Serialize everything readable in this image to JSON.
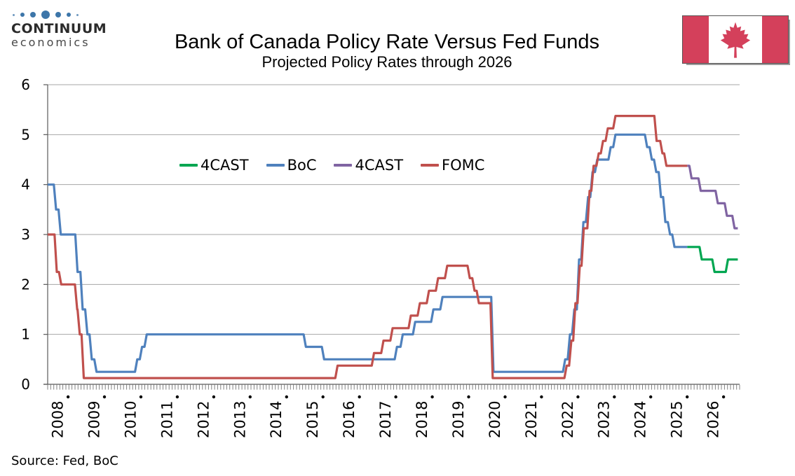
{
  "logo": {
    "name": "CONTINUUM",
    "tagline": "economics"
  },
  "header": {
    "title": "Bank of Canada Policy Rate Versus Fed Funds",
    "subtitle": "Projected Policy Rates through 2026"
  },
  "footer": {
    "source": "Source: Fed, BoC"
  },
  "flag": {
    "country": "Canada"
  },
  "chart_data": {
    "type": "line",
    "title": "Bank of Canada Policy Rate Versus Fed Funds",
    "subtitle": "Projected Policy Rates through 2026",
    "xlabel": "",
    "ylabel": "",
    "xlim": [
      2008,
      2027
    ],
    "ylim": [
      0,
      6
    ],
    "yticks": [
      0,
      1,
      2,
      3,
      4,
      5,
      6
    ],
    "xticks": [
      2008,
      2009,
      2010,
      2011,
      2012,
      2013,
      2014,
      2015,
      2016,
      2017,
      2018,
      2019,
      2020,
      2021,
      2022,
      2023,
      2024,
      2025,
      2026
    ],
    "grid": "horizontal",
    "legend_position": "inside upper-left",
    "colors": {
      "gridline": "#a6a6a6",
      "axis": "#595959",
      "tick": "#808080"
    },
    "series": [
      {
        "name": "4CAST",
        "role": "BoC rate projection",
        "color": "#00a651",
        "end": 2026.95,
        "points": [
          [
            2025.56,
            2.75
          ],
          [
            2025.93,
            2.5
          ],
          [
            2026.28,
            2.25
          ],
          [
            2026.65,
            2.5
          ]
        ]
      },
      {
        "name": "BoC",
        "role": "Bank of Canada policy rate (actual)",
        "color": "#4f81bd",
        "end": 2025.56,
        "points": [
          [
            2008.0,
            4.0
          ],
          [
            2008.2,
            3.5
          ],
          [
            2008.33,
            3.0
          ],
          [
            2008.79,
            2.25
          ],
          [
            2008.93,
            1.5
          ],
          [
            2009.06,
            1.0
          ],
          [
            2009.18,
            0.5
          ],
          [
            2009.31,
            0.25
          ],
          [
            2010.43,
            0.5
          ],
          [
            2010.56,
            0.75
          ],
          [
            2010.69,
            1.0
          ],
          [
            2015.06,
            0.75
          ],
          [
            2015.56,
            0.5
          ],
          [
            2017.56,
            0.75
          ],
          [
            2017.72,
            1.0
          ],
          [
            2018.06,
            1.25
          ],
          [
            2018.56,
            1.5
          ],
          [
            2018.81,
            1.75
          ],
          [
            2020.21,
            0.25
          ],
          [
            2022.18,
            0.5
          ],
          [
            2022.31,
            1.0
          ],
          [
            2022.43,
            1.5
          ],
          [
            2022.56,
            2.5
          ],
          [
            2022.68,
            3.25
          ],
          [
            2022.81,
            3.75
          ],
          [
            2022.93,
            4.25
          ],
          [
            2023.06,
            4.5
          ],
          [
            2023.43,
            4.75
          ],
          [
            2023.56,
            5.0
          ],
          [
            2024.43,
            4.75
          ],
          [
            2024.56,
            4.5
          ],
          [
            2024.68,
            4.25
          ],
          [
            2024.81,
            3.75
          ],
          [
            2024.93,
            3.25
          ],
          [
            2025.06,
            3.0
          ],
          [
            2025.18,
            2.75
          ]
        ]
      },
      {
        "name": "4CAST",
        "role": "Fed funds projection",
        "color": "#8064a2",
        "end": 2026.95,
        "points": [
          [
            2025.56,
            4.375
          ],
          [
            2025.65,
            4.125
          ],
          [
            2025.9,
            3.875
          ],
          [
            2026.37,
            3.625
          ],
          [
            2026.62,
            3.375
          ],
          [
            2026.83,
            3.125
          ]
        ]
      },
      {
        "name": "FOMC",
        "role": "Fed funds rate (actual)",
        "color": "#c0504d",
        "end": 2025.56,
        "points": [
          [
            2008.0,
            3.0
          ],
          [
            2008.22,
            2.25
          ],
          [
            2008.34,
            2.0
          ],
          [
            2008.78,
            1.5
          ],
          [
            2008.85,
            1.0
          ],
          [
            2008.96,
            0.125
          ],
          [
            2015.93,
            0.375
          ],
          [
            2016.93,
            0.625
          ],
          [
            2017.19,
            0.875
          ],
          [
            2017.44,
            1.125
          ],
          [
            2017.94,
            1.375
          ],
          [
            2018.19,
            1.625
          ],
          [
            2018.44,
            1.875
          ],
          [
            2018.69,
            2.125
          ],
          [
            2018.94,
            2.375
          ],
          [
            2019.56,
            2.125
          ],
          [
            2019.69,
            1.875
          ],
          [
            2019.81,
            1.625
          ],
          [
            2020.19,
            0.125
          ],
          [
            2022.22,
            0.375
          ],
          [
            2022.35,
            0.875
          ],
          [
            2022.46,
            1.625
          ],
          [
            2022.58,
            2.375
          ],
          [
            2022.69,
            3.125
          ],
          [
            2022.85,
            3.875
          ],
          [
            2022.96,
            4.375
          ],
          [
            2023.1,
            4.625
          ],
          [
            2023.22,
            4.875
          ],
          [
            2023.35,
            5.125
          ],
          [
            2023.56,
            5.375
          ],
          [
            2024.69,
            4.875
          ],
          [
            2024.85,
            4.625
          ],
          [
            2024.96,
            4.375
          ]
        ]
      }
    ]
  }
}
